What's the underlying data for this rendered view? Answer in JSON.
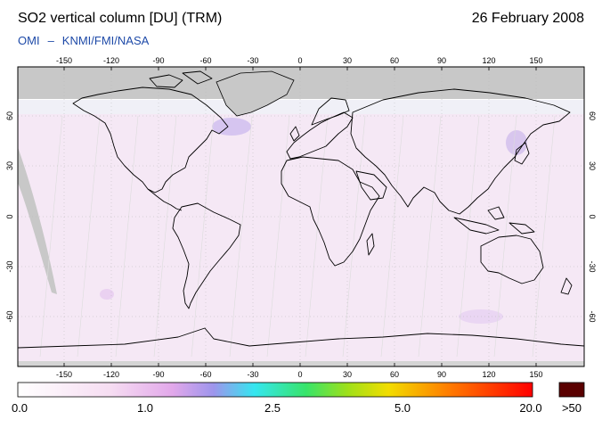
{
  "header": {
    "title": "SO2 vertical column [DU] (TRM)",
    "date": "26 February 2008",
    "credit_left": "OMI",
    "credit_dash": "–",
    "credit_right": "KNMI/FMI/NASA"
  },
  "map": {
    "lon_ticks": [
      "-150",
      "-120",
      "-90",
      "-60",
      "-30",
      "0",
      "30",
      "60",
      "90",
      "120",
      "150"
    ],
    "lat_ticks": [
      "60",
      "30",
      "0",
      "-30",
      "-60"
    ],
    "colors": {
      "no_data": "#c8c8c8",
      "background": "#ffffff",
      "coast": "#000000"
    }
  },
  "colorbar": {
    "labels": [
      "0.0",
      "1.0",
      "2.5",
      "5.0",
      "20.0",
      ">50"
    ],
    "overflow_color": "#5a0000"
  }
}
